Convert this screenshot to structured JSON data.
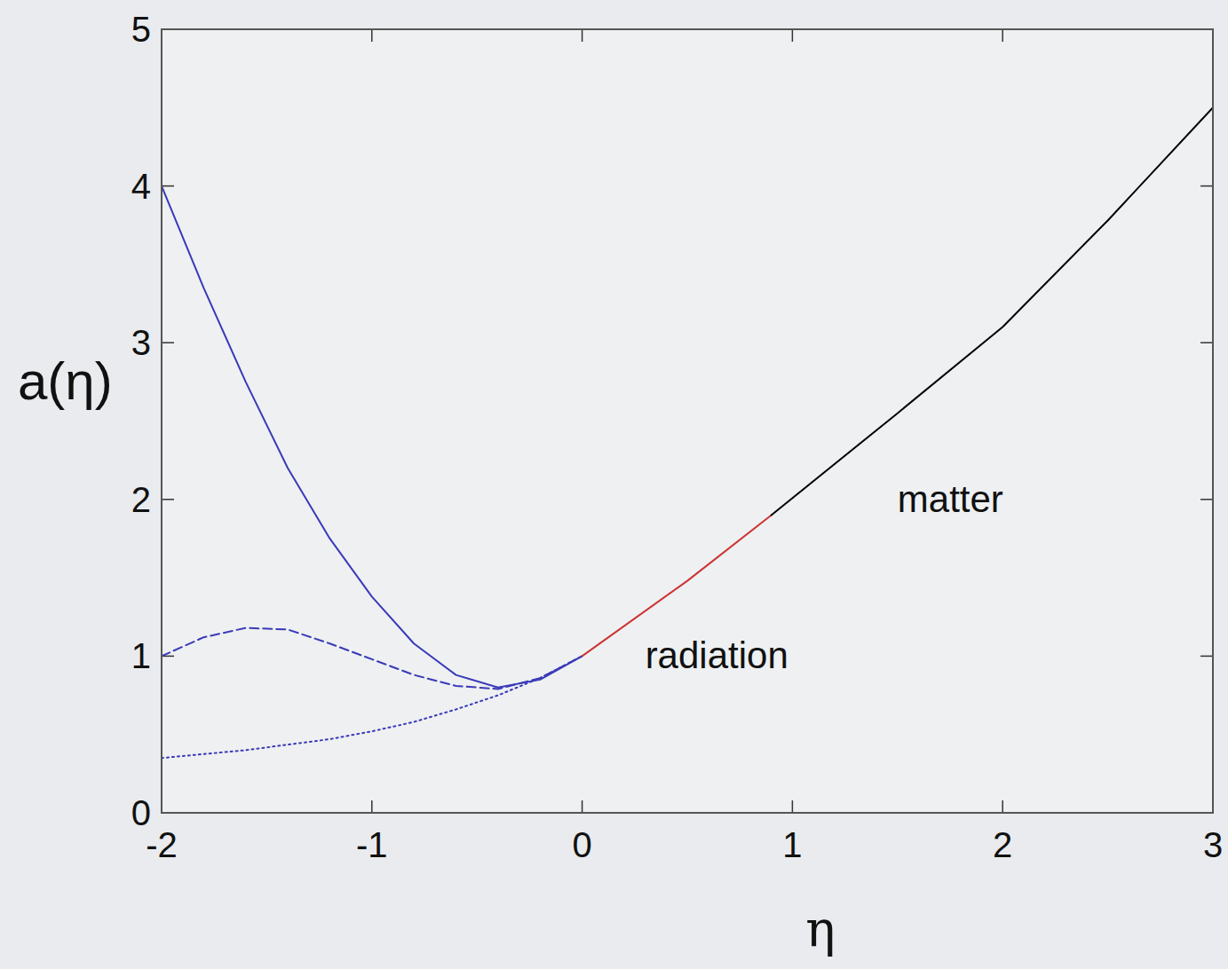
{
  "chart_data": {
    "type": "line",
    "x_label": "η",
    "y_label": "a(η)",
    "xlim": [
      -2,
      3
    ],
    "ylim": [
      0,
      5
    ],
    "xticks": [
      -2,
      -1,
      0,
      1,
      2,
      3
    ],
    "yticks": [
      0,
      1,
      2,
      3,
      4,
      5
    ],
    "grid": false,
    "series": [
      {
        "color": "#3a3ab8",
        "line_style": "solid",
        "x": [
          -2,
          -1.8,
          -1.6,
          -1.4,
          -1.2,
          -1,
          -0.8,
          -0.6,
          -0.4,
          -0.2,
          0
        ],
        "values": [
          4.0,
          3.35,
          2.75,
          2.2,
          1.75,
          1.38,
          1.08,
          0.88,
          0.8,
          0.85,
          1.0
        ]
      },
      {
        "color": "#3a3ab8",
        "line_style": "dashed",
        "x": [
          -2,
          -1.8,
          -1.6,
          -1.4,
          -1.2,
          -1,
          -0.8,
          -0.6,
          -0.4,
          -0.2,
          0
        ],
        "values": [
          1.0,
          1.12,
          1.18,
          1.17,
          1.08,
          0.98,
          0.88,
          0.81,
          0.79,
          0.86,
          1.0
        ]
      },
      {
        "color": "#3a3ab8",
        "line_style": "dotted",
        "x": [
          -2,
          -1.6,
          -1.2,
          -1,
          -0.8,
          -0.6,
          -0.4,
          -0.2,
          0
        ],
        "values": [
          0.35,
          0.4,
          0.47,
          0.52,
          0.58,
          0.66,
          0.75,
          0.86,
          1.0
        ]
      },
      {
        "color": "#cc3333",
        "line_style": "solid",
        "x": [
          0,
          0.5,
          0.9
        ],
        "values": [
          1.0,
          1.48,
          1.9
        ]
      },
      {
        "color": "#000000",
        "line_style": "solid",
        "x": [
          0.9,
          1.5,
          2,
          2.5,
          3
        ],
        "values": [
          1.9,
          2.55,
          3.1,
          3.78,
          4.5
        ]
      }
    ],
    "annotations": [
      {
        "text": "radiation",
        "x": 0.3,
        "y": 1.0
      },
      {
        "text": "matter",
        "x": 1.5,
        "y": 2.0
      }
    ]
  }
}
